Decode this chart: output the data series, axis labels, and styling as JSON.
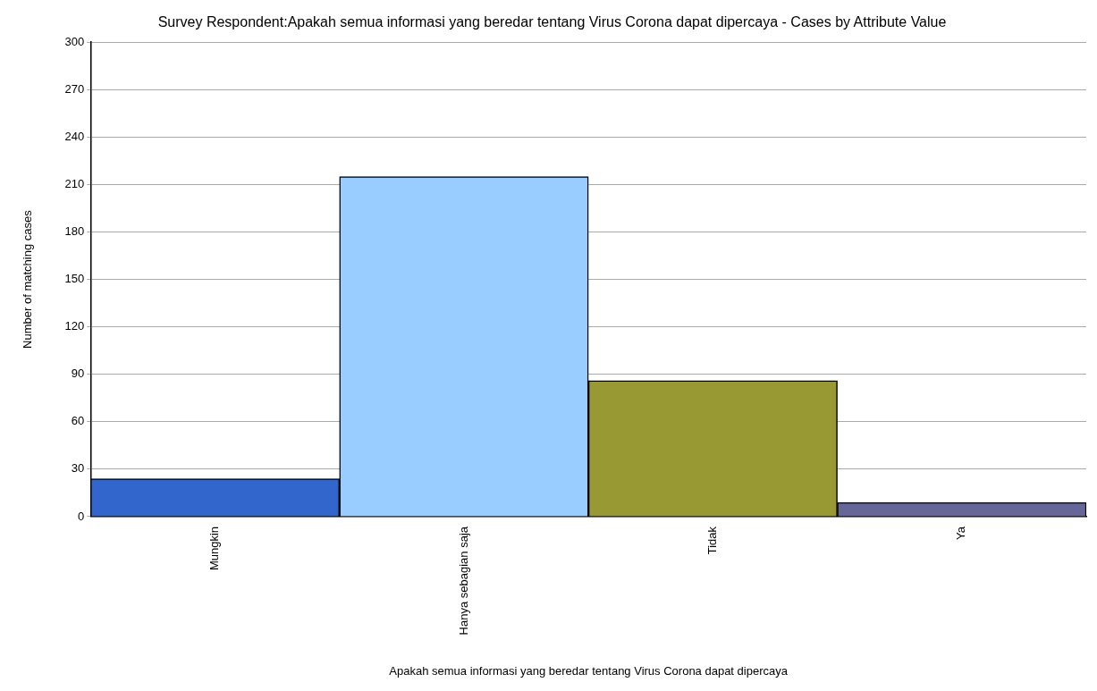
{
  "chart_data": {
    "type": "bar",
    "title": "Survey Respondent:Apakah semua informasi yang beredar tentang Virus Corona dapat dipercaya - Cases by Attribute Value",
    "xlabel": "Apakah semua informasi yang beredar tentang Virus Corona dapat dipercaya",
    "ylabel": "Number of matching cases",
    "categories": [
      "Mungkin",
      "Hanya sebagian saja",
      "Tidak",
      "Ya"
    ],
    "values": [
      24,
      215,
      86,
      9
    ],
    "colors": [
      "#3366cc",
      "#99ccff",
      "#999933",
      "#666699"
    ],
    "ylim": [
      0,
      300
    ],
    "yticks": [
      0,
      30,
      60,
      90,
      120,
      150,
      180,
      210,
      240,
      270,
      300
    ],
    "grid": "y",
    "legend": false
  }
}
